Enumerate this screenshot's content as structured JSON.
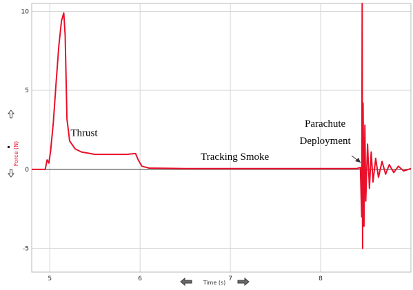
{
  "chart_data": {
    "type": "line",
    "xlabel": "Time (s)",
    "ylabel": "Force (N)",
    "xlim": [
      4.8,
      9.0
    ],
    "ylim": [
      -6.5,
      10.5
    ],
    "x_ticks": [
      5,
      6,
      7,
      8
    ],
    "x_tick_labels": [
      "5",
      "6",
      "7",
      "8"
    ],
    "y_ticks": [
      10,
      5,
      0,
      -5
    ],
    "y_tick_labels": [
      "10",
      "5",
      "0",
      "-5"
    ],
    "grid": true,
    "series": [
      {
        "color": "#e8102a",
        "points": [
          [
            4.8,
            0.0
          ],
          [
            4.95,
            0.0
          ],
          [
            4.97,
            0.6
          ],
          [
            4.99,
            0.4
          ],
          [
            5.01,
            1.2
          ],
          [
            5.04,
            3.0
          ],
          [
            5.07,
            5.5
          ],
          [
            5.1,
            7.8
          ],
          [
            5.13,
            9.4
          ],
          [
            5.155,
            9.9
          ],
          [
            5.17,
            8.5
          ],
          [
            5.19,
            3.2
          ],
          [
            5.22,
            1.8
          ],
          [
            5.28,
            1.3
          ],
          [
            5.35,
            1.1
          ],
          [
            5.5,
            0.95
          ],
          [
            5.7,
            0.95
          ],
          [
            5.85,
            0.95
          ],
          [
            5.95,
            1.0
          ],
          [
            5.98,
            0.6
          ],
          [
            6.02,
            0.2
          ],
          [
            6.1,
            0.08
          ],
          [
            6.5,
            0.05
          ],
          [
            7.0,
            0.05
          ],
          [
            7.5,
            0.05
          ],
          [
            8.0,
            0.05
          ],
          [
            8.4,
            0.05
          ],
          [
            8.44,
            0.12
          ],
          [
            8.455,
            -3.0
          ],
          [
            8.46,
            10.5
          ],
          [
            8.465,
            -5.0
          ],
          [
            8.47,
            4.2
          ],
          [
            8.48,
            -3.6
          ],
          [
            8.49,
            2.8
          ],
          [
            8.5,
            -2.0
          ],
          [
            8.52,
            1.6
          ],
          [
            8.54,
            -1.2
          ],
          [
            8.56,
            1.1
          ],
          [
            8.58,
            -0.8
          ],
          [
            8.61,
            0.7
          ],
          [
            8.64,
            -0.5
          ],
          [
            8.68,
            0.5
          ],
          [
            8.72,
            -0.3
          ],
          [
            8.76,
            0.3
          ],
          [
            8.81,
            -0.2
          ],
          [
            8.86,
            0.2
          ],
          [
            8.92,
            -0.1
          ],
          [
            9.0,
            0.05
          ]
        ]
      }
    ],
    "annotations": [
      {
        "text": "Thrust",
        "x": 5.38,
        "y": 2.1
      },
      {
        "text": "Tracking Smoke",
        "x": 7.05,
        "y": 0.6
      },
      {
        "text": "Parachute",
        "x": 8.05,
        "y": 2.7
      },
      {
        "text": "Deployment",
        "x": 8.05,
        "y": 1.6
      }
    ]
  }
}
